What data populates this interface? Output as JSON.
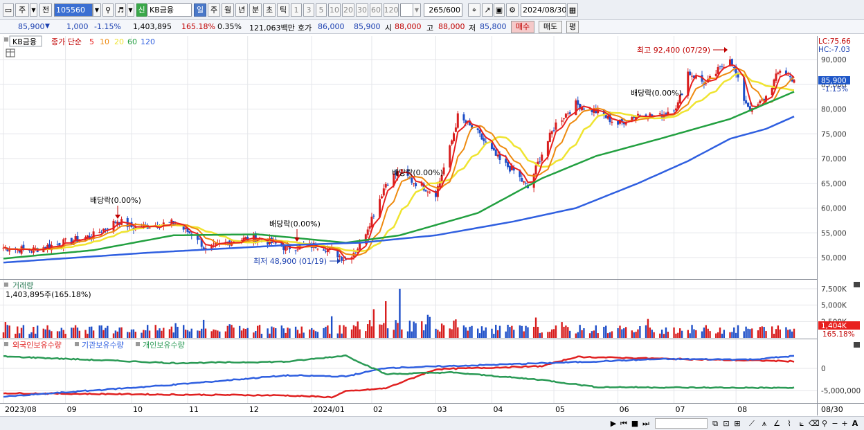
{
  "toolbar": {
    "menu_label": "주",
    "prev_label": "전",
    "code_value": "105560",
    "new_badge": "신",
    "stock_name": "KB금융",
    "periods": [
      "일",
      "주",
      "월",
      "년",
      "분",
      "초",
      "틱"
    ],
    "active_period": "일",
    "intervals": [
      "1",
      "3",
      "5",
      "10",
      "20",
      "30",
      "60",
      "120"
    ],
    "count_value": "265",
    "count_max": "/600",
    "date_value": "2024/08/30"
  },
  "quote": {
    "price": "85,900",
    "change": "1,000",
    "change_pct": "-1.15%",
    "volume": "1,403,895",
    "volume_ratio": "165.18%",
    "turnover_ratio": "0.35%",
    "amount": "121,063백만",
    "bid_label": "호가",
    "bid1": "86,000",
    "bid2": "85,900",
    "open_label": "시",
    "open": "88,000",
    "high_label": "고",
    "high": "88,000",
    "low_label": "저",
    "low": "85,800",
    "buy_label": "매수",
    "sell_label": "매도",
    "eval_label": "평"
  },
  "price_panel": {
    "stock_label": "KB금융",
    "ma_prefix": "종가 단순",
    "ma_legend": [
      {
        "period": "5",
        "color": "#e8201e"
      },
      {
        "period": "10",
        "color": "#ee8a10"
      },
      {
        "period": "20",
        "color": "#efe430"
      },
      {
        "period": "60",
        "color": "#22a040"
      },
      {
        "period": "120",
        "color": "#2f5fe0"
      }
    ],
    "lc_text": "LC:75.66",
    "hc_text": "HC:-7.03",
    "current_price": "85,900",
    "current_pct": "-1.15%",
    "high_note": "최고 92,400 (07/29)",
    "low_note": "최저 48,900 (01/19)",
    "dividend_notes": [
      "배당락(0.00%)",
      "배당락(0.00%)",
      "배당락(0.00%)",
      "배당락(0.00%)"
    ]
  },
  "volume_panel": {
    "title": "거래량",
    "value_text": "1,403,895주(165.18%)",
    "tag_value": "1,404K",
    "tag_pct": "165.18%"
  },
  "holding_panel": {
    "legend": [
      {
        "label": "외국인보유수량",
        "color": "#e02020"
      },
      {
        "label": "기관보유수량",
        "color": "#2f5fe0"
      },
      {
        "label": "개인보유수량",
        "color": "#2a9a55"
      }
    ]
  },
  "time_axis": {
    "labels": [
      "2023/08",
      "09",
      "10",
      "11",
      "12",
      "2024/01",
      "02",
      "03",
      "04",
      "05",
      "06",
      "07",
      "08"
    ],
    "end_label": "08/30"
  },
  "chart_data": [
    {
      "type": "candlestick",
      "name": "KB금융 일봉",
      "x_range": [
        "2023/08",
        "2024/08/30"
      ],
      "ylim": [
        47000,
        96000
      ],
      "y_ticks": [
        "50,000",
        "55,000",
        "60,000",
        "65,000",
        "70,000",
        "75,000",
        "80,000",
        "85,000",
        "90,000"
      ],
      "close_path": [
        {
          "x": "2023-08-01",
          "y": 52000
        },
        {
          "x": "2023-08-15",
          "y": 51500
        },
        {
          "x": "2023-08-31",
          "y": 53000
        },
        {
          "x": "2023-09-15",
          "y": 54500
        },
        {
          "x": "2023-09-27",
          "y": 57500
        },
        {
          "x": "2023-10-05",
          "y": 56000
        },
        {
          "x": "2023-10-13",
          "y": 56500
        },
        {
          "x": "2023-10-25",
          "y": 57000
        },
        {
          "x": "2023-11-06",
          "y": 54000
        },
        {
          "x": "2023-11-10",
          "y": 51500
        },
        {
          "x": "2023-11-24",
          "y": 53500
        },
        {
          "x": "2023-12-06",
          "y": 54000
        },
        {
          "x": "2023-12-20",
          "y": 52000
        },
        {
          "x": "2024-01-05",
          "y": 52500
        },
        {
          "x": "2024-01-12",
          "y": 51500
        },
        {
          "x": "2024-01-19",
          "y": 49500
        },
        {
          "x": "2024-01-26",
          "y": 52500
        },
        {
          "x": "2024-02-02",
          "y": 59000
        },
        {
          "x": "2024-02-08",
          "y": 65000
        },
        {
          "x": "2024-02-15",
          "y": 67500
        },
        {
          "x": "2024-02-21",
          "y": 65500
        },
        {
          "x": "2024-03-04",
          "y": 63000
        },
        {
          "x": "2024-03-11",
          "y": 72000
        },
        {
          "x": "2024-03-15",
          "y": 78500
        },
        {
          "x": "2024-03-25",
          "y": 75000
        },
        {
          "x": "2024-04-05",
          "y": 69500
        },
        {
          "x": "2024-04-12",
          "y": 67500
        },
        {
          "x": "2024-04-19",
          "y": 64000
        },
        {
          "x": "2024-04-26",
          "y": 71000
        },
        {
          "x": "2024-05-03",
          "y": 77000
        },
        {
          "x": "2024-05-13",
          "y": 81000
        },
        {
          "x": "2024-05-23",
          "y": 79500
        },
        {
          "x": "2024-06-03",
          "y": 77000
        },
        {
          "x": "2024-06-13",
          "y": 79000
        },
        {
          "x": "2024-06-24",
          "y": 78500
        },
        {
          "x": "2024-07-03",
          "y": 81000
        },
        {
          "x": "2024-07-08",
          "y": 87500
        },
        {
          "x": "2024-07-17",
          "y": 85000
        },
        {
          "x": "2024-07-29",
          "y": 90500
        },
        {
          "x": "2024-08-05",
          "y": 82000
        },
        {
          "x": "2024-08-09",
          "y": 79500
        },
        {
          "x": "2024-08-16",
          "y": 82500
        },
        {
          "x": "2024-08-23",
          "y": 88000
        },
        {
          "x": "2024-08-30",
          "y": 85900
        }
      ],
      "ma60_path": [
        {
          "x": "2023-08-01",
          "y": 49800
        },
        {
          "x": "2023-09-15",
          "y": 51500
        },
        {
          "x": "2023-10-25",
          "y": 54500
        },
        {
          "x": "2023-12-06",
          "y": 54700
        },
        {
          "x": "2024-01-19",
          "y": 53000
        },
        {
          "x": "2024-02-15",
          "y": 54500
        },
        {
          "x": "2024-03-25",
          "y": 59000
        },
        {
          "x": "2024-04-26",
          "y": 66000
        },
        {
          "x": "2024-05-23",
          "y": 70500
        },
        {
          "x": "2024-06-24",
          "y": 74000
        },
        {
          "x": "2024-07-29",
          "y": 78000
        },
        {
          "x": "2024-08-30",
          "y": 83500
        }
      ],
      "ma120_path": [
        {
          "x": "2023-08-01",
          "y": 49000
        },
        {
          "x": "2023-10-13",
          "y": 51000
        },
        {
          "x": "2023-12-20",
          "y": 52500
        },
        {
          "x": "2024-01-26",
          "y": 53000
        },
        {
          "x": "2024-03-04",
          "y": 54500
        },
        {
          "x": "2024-04-12",
          "y": 57300
        },
        {
          "x": "2024-05-13",
          "y": 60000
        },
        {
          "x": "2024-06-13",
          "y": 65000
        },
        {
          "x": "2024-07-08",
          "y": 69500
        },
        {
          "x": "2024-07-29",
          "y": 74000
        },
        {
          "x": "2024-08-16",
          "y": 76000
        },
        {
          "x": "2024-08-30",
          "y": 78500
        }
      ]
    },
    {
      "type": "bar",
      "name": "거래량",
      "unit": "주",
      "y_ticks": [
        "2,500K",
        "5,000K",
        "7,500K"
      ],
      "ylim": [
        0,
        9000000
      ],
      "peaks": [
        {
          "x": "2024-01-12",
          "y": 3300000
        },
        {
          "x": "2024-02-08",
          "y": 5600000
        },
        {
          "x": "2024-02-15",
          "y": 7500000
        },
        {
          "x": "2024-08-30",
          "y": 1403895
        }
      ]
    },
    {
      "type": "line",
      "name": "보유수량",
      "y_ticks": [
        "0",
        "-5,000,000"
      ],
      "series": [
        {
          "name": "외국인보유수량",
          "points": [
            {
              "x": "2023-08-01",
              "y": -5600000
            },
            {
              "x": "2023-12-20",
              "y": -6100000
            },
            {
              "x": "2024-01-12",
              "y": -6500000
            },
            {
              "x": "2024-01-19",
              "y": -5200000
            },
            {
              "x": "2024-02-08",
              "y": -4500000
            },
            {
              "x": "2024-03-04",
              "y": -200000
            },
            {
              "x": "2024-04-26",
              "y": 500000
            },
            {
              "x": "2024-05-13",
              "y": 2600000
            },
            {
              "x": "2024-06-24",
              "y": 2200000
            },
            {
              "x": "2024-08-30",
              "y": 1600000
            }
          ]
        },
        {
          "name": "기관보유수량",
          "points": [
            {
              "x": "2023-08-01",
              "y": -6400000
            },
            {
              "x": "2023-10-25",
              "y": -3700000
            },
            {
              "x": "2023-12-20",
              "y": -1600000
            },
            {
              "x": "2024-01-19",
              "y": -1800000
            },
            {
              "x": "2024-02-08",
              "y": 100000
            },
            {
              "x": "2024-03-25",
              "y": 700000
            },
            {
              "x": "2024-05-13",
              "y": 1400000
            },
            {
              "x": "2024-06-24",
              "y": 2100000
            },
            {
              "x": "2024-08-09",
              "y": 2000000
            },
            {
              "x": "2024-08-30",
              "y": 2800000
            }
          ]
        },
        {
          "name": "개인보유수량",
          "points": [
            {
              "x": "2023-08-01",
              "y": 2700000
            },
            {
              "x": "2023-10-25",
              "y": 1200000
            },
            {
              "x": "2023-12-20",
              "y": 1500000
            },
            {
              "x": "2024-01-19",
              "y": 2900000
            },
            {
              "x": "2024-02-08",
              "y": -1300000
            },
            {
              "x": "2024-03-11",
              "y": -900000
            },
            {
              "x": "2024-04-26",
              "y": -2600000
            },
            {
              "x": "2024-05-23",
              "y": -4200000
            },
            {
              "x": "2024-06-24",
              "y": -4300000
            },
            {
              "x": "2024-08-30",
              "y": -4400000
            }
          ]
        }
      ]
    }
  ]
}
